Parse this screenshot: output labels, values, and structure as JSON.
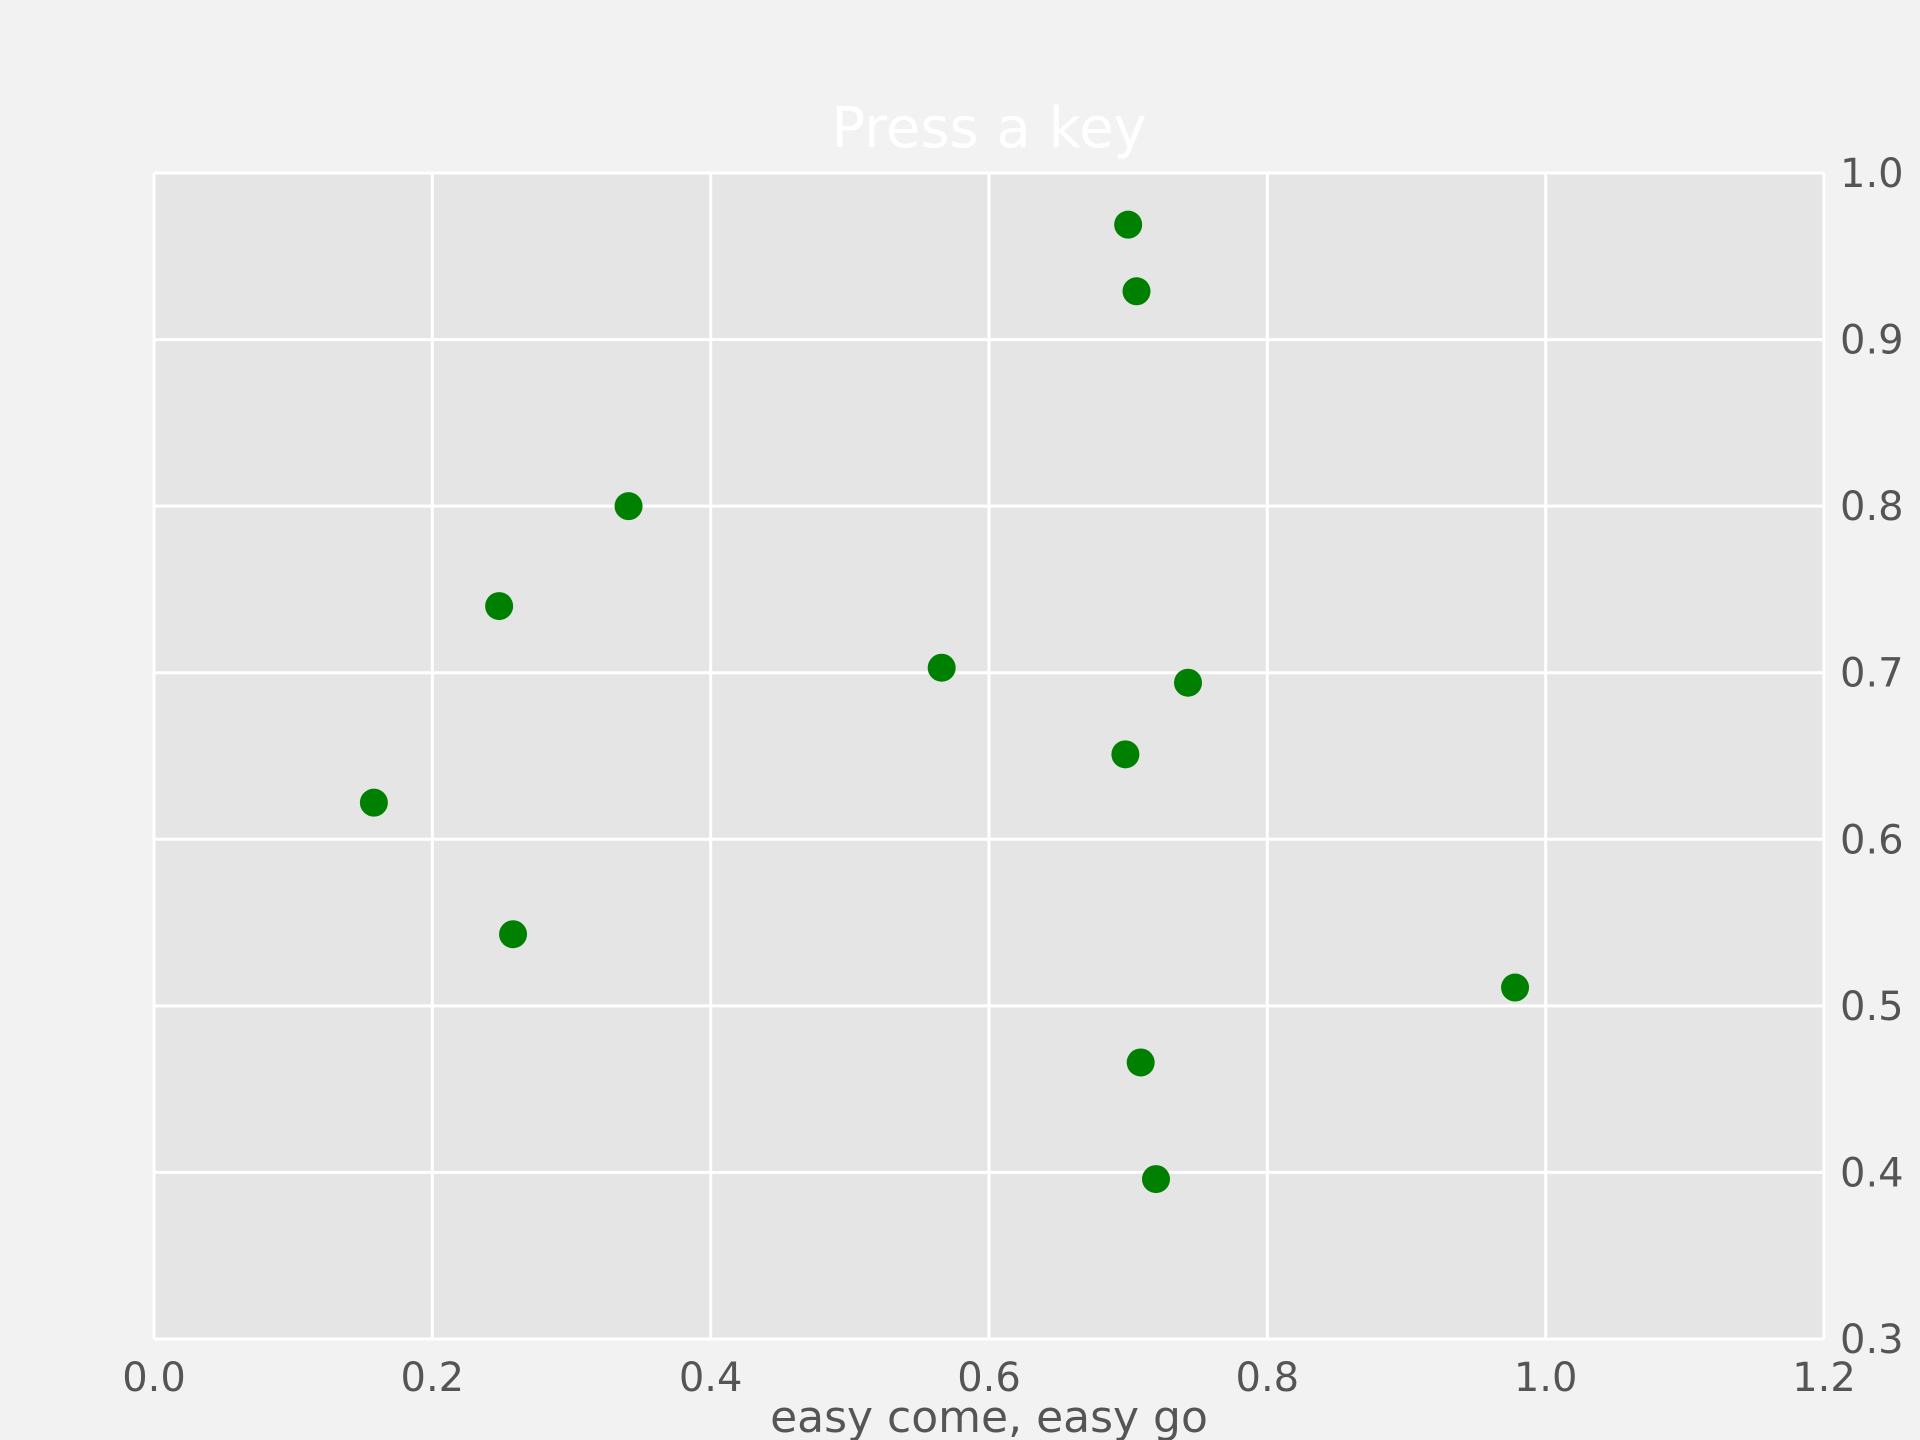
{
  "chart_data": {
    "type": "scatter",
    "title": "Press a key",
    "xlabel": "easy come, easy go",
    "ylabel": "",
    "xlim": [
      0.0,
      1.2
    ],
    "ylim": [
      0.3,
      1.0
    ],
    "x_ticks": [
      "0.0",
      "0.2",
      "0.4",
      "0.6",
      "0.8",
      "1.0",
      "1.2"
    ],
    "y_ticks": [
      "0.3",
      "0.4",
      "0.5",
      "0.6",
      "0.7",
      "0.8",
      "0.9",
      "1.0"
    ],
    "y_axis_side": "right",
    "grid": true,
    "series": [
      {
        "points": [
          {
            "x": 0.7,
            "y": 0.969
          },
          {
            "x": 0.706,
            "y": 0.929
          },
          {
            "x": 0.341,
            "y": 0.8
          },
          {
            "x": 0.248,
            "y": 0.74
          },
          {
            "x": 0.566,
            "y": 0.703
          },
          {
            "x": 0.743,
            "y": 0.694
          },
          {
            "x": 0.698,
            "y": 0.651
          },
          {
            "x": 0.158,
            "y": 0.622
          },
          {
            "x": 0.258,
            "y": 0.543
          },
          {
            "x": 0.978,
            "y": 0.511
          },
          {
            "x": 0.709,
            "y": 0.466
          },
          {
            "x": 0.72,
            "y": 0.396
          }
        ]
      }
    ]
  },
  "colors": {
    "background": "#f2f2f2",
    "plot_area": "#e5e5e5",
    "grid": "#ffffff",
    "marker": "#008000",
    "text": "#555555",
    "title": "#ffffff"
  }
}
